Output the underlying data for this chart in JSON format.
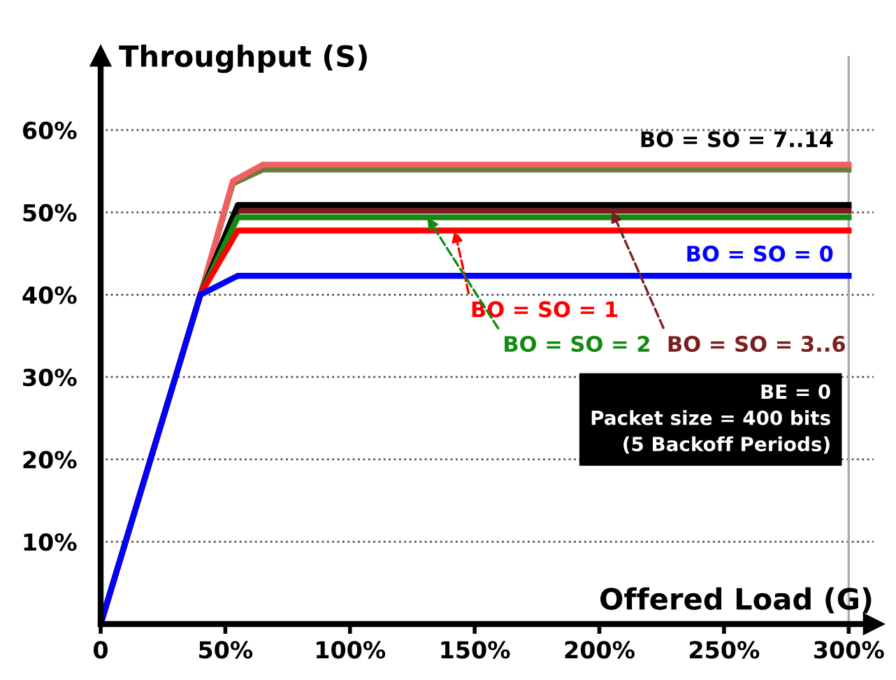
{
  "chart_data": {
    "type": "line",
    "xlabel": "Offered Load (G)",
    "ylabel": "Throughput (S)",
    "xlim": [
      0,
      310
    ],
    "ylim": [
      0,
      69
    ],
    "xticks": [
      {
        "value": 0,
        "label": "0"
      },
      {
        "value": 50,
        "label": "50%"
      },
      {
        "value": 100,
        "label": "100%"
      },
      {
        "value": 150,
        "label": "150%"
      },
      {
        "value": 200,
        "label": "200%"
      },
      {
        "value": 250,
        "label": "250%"
      },
      {
        "value": 300,
        "label": "300%"
      }
    ],
    "yticks": [
      {
        "value": 10,
        "label": "10%"
      },
      {
        "value": 20,
        "label": "20%"
      },
      {
        "value": 30,
        "label": "30%"
      },
      {
        "value": 40,
        "label": "40%"
      },
      {
        "value": 50,
        "label": "50%"
      },
      {
        "value": 60,
        "label": "60%"
      }
    ],
    "grid": "y",
    "marker": "none",
    "line_style": "solid",
    "ref_lines": [
      {
        "axis": "x",
        "value": 300,
        "color": "#aaaaaa"
      }
    ],
    "series": [
      {
        "color": "#6b7b3a",
        "x": [
          0,
          40,
          53,
          65,
          300
        ],
        "values": [
          0,
          40,
          53.5,
          55.2,
          55.2
        ]
      },
      {
        "color": "#f06060",
        "x": [
          0,
          40,
          53,
          65,
          300
        ],
        "values": [
          0,
          40,
          53.8,
          55.8,
          55.8
        ]
      },
      {
        "color": "#7a1f1f",
        "x": [
          0,
          40,
          55,
          300
        ],
        "values": [
          0,
          40,
          50.2,
          50.2
        ]
      },
      {
        "color": "#000000",
        "x": [
          0,
          40,
          55,
          300
        ],
        "values": [
          0,
          40,
          50.9,
          50.9
        ]
      },
      {
        "color": "#138a13",
        "x": [
          0,
          40,
          55,
          300
        ],
        "values": [
          0,
          40,
          49.4,
          49.4
        ]
      },
      {
        "color": "#ff0000",
        "x": [
          0,
          40,
          55,
          300
        ],
        "values": [
          0,
          40,
          47.8,
          47.8
        ]
      },
      {
        "color": "#0000ff",
        "x": [
          0,
          40,
          55,
          300
        ],
        "values": [
          0,
          40,
          42.3,
          42.3
        ]
      }
    ],
    "annotations": [
      {
        "text": "BO = SO = 7..14",
        "x": 300,
        "y": 55.8
      },
      {
        "text": "BO = SO = 0",
        "x": 300,
        "y": 42.3
      },
      {
        "text": "BO = SO = 1",
        "x": 142,
        "y": 47.8
      },
      {
        "text": "BO = SO = 2",
        "x": 131,
        "y": 49.4
      },
      {
        "text": "BO = SO = 3..6",
        "x": 205,
        "y": 50.2
      },
      "BE = 0\nPacket size = 400 bits\n(5 Backoff Periods)"
    ]
  }
}
